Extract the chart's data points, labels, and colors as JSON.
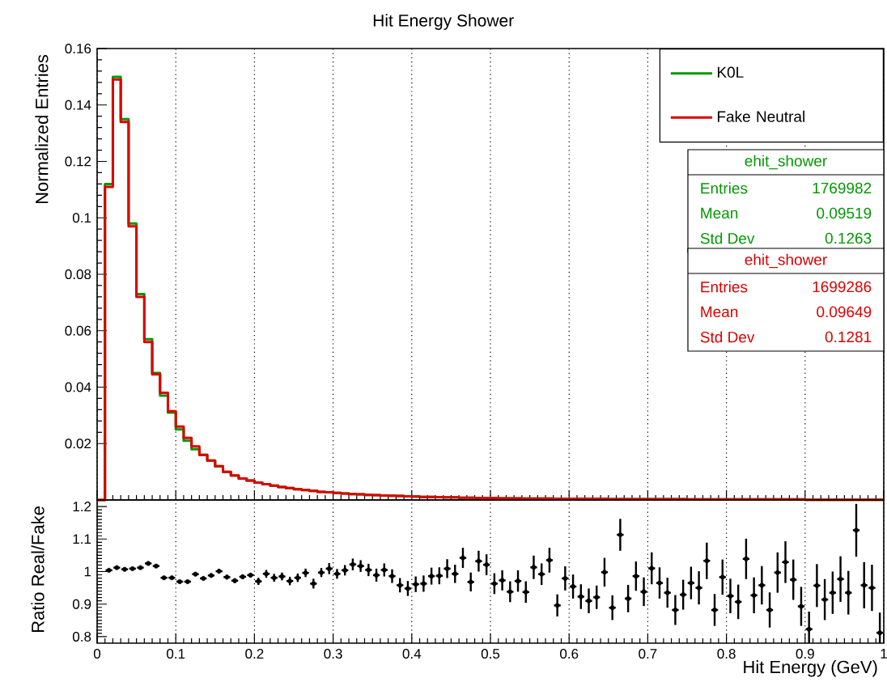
{
  "chart_data": [
    {
      "type": "histogram",
      "title": "Hit Energy Shower",
      "ylabel": "Normalized Entries",
      "bins": [
        0,
        0.01,
        0.02,
        0.03,
        0.04,
        0.05,
        0.06,
        0.07,
        0.08,
        0.09,
        0.1,
        0.11,
        0.12,
        0.13,
        0.14,
        0.15,
        0.16,
        0.17,
        0.18,
        0.19,
        0.2,
        0.21,
        0.22,
        0.23,
        0.24,
        0.25,
        0.26,
        0.27,
        0.28,
        0.29,
        0.3,
        0.31,
        0.32,
        0.33,
        0.34,
        0.35,
        0.36,
        0.37,
        0.38,
        0.39,
        0.4,
        0.41,
        0.42,
        0.43,
        0.44,
        0.45,
        0.46,
        0.47,
        0.48,
        0.49,
        0.5,
        0.51,
        0.52,
        0.53,
        0.54,
        0.55,
        0.56,
        0.57,
        0.58,
        0.59,
        0.6,
        0.61,
        0.62,
        0.63,
        0.64,
        0.65,
        0.66,
        0.67,
        0.68,
        0.69,
        0.7,
        0.71,
        0.72,
        0.73,
        0.74,
        0.75,
        0.76,
        0.77,
        0.78,
        0.79,
        0.8,
        0.81,
        0.82,
        0.83,
        0.84,
        0.85,
        0.86,
        0.87,
        0.88,
        0.89,
        0.9,
        0.91,
        0.92,
        0.93,
        0.94,
        0.95,
        0.96,
        0.97,
        0.98,
        0.99,
        1
      ],
      "series": [
        {
          "name": "K0L",
          "color": "#009900",
          "values": [
            0,
            0.112,
            0.15,
            0.135,
            0.098,
            0.073,
            0.057,
            0.045,
            0.037,
            0.031,
            0.025,
            0.021,
            0.018,
            0.016,
            0.014,
            0.012,
            0.01,
            0.0087,
            0.0076,
            0.0069,
            0.0062,
            0.0056,
            0.0051,
            0.0046,
            0.0042,
            0.0038,
            0.0035,
            0.0032,
            0.0029,
            0.0027,
            0.0025,
            0.0023,
            0.0021,
            0.002,
            0.0018,
            0.0017,
            0.0016,
            0.0015,
            0.0014,
            0.0013,
            0.0012,
            0.0011,
            0.0011,
            0.001,
            0.0009,
            0.0009,
            0.0008,
            0.0008,
            0.0007,
            0.0007,
            0.0007,
            0.0006,
            0.0006,
            0.0006,
            0.0005,
            0.0005,
            0.0005,
            0.0005,
            0.0004,
            0.0004,
            0.0004,
            0.0004,
            0.0004,
            0.0004,
            0.0004,
            0.0003,
            0.0003,
            0.0003,
            0.0003,
            0.0003,
            0.0003,
            0.0003,
            0.0003,
            0.0003,
            0.0003,
            0.0002,
            0.0002,
            0.0002,
            0.0002,
            0.0002,
            0.0002,
            0.0002,
            0.0002,
            0.0002,
            0.0002,
            0.0002,
            0.0002,
            0.0002,
            0.0002,
            0.0002,
            0.0001,
            0.0001,
            0.0001,
            0.0001,
            0.0001,
            0.0001,
            0.0001,
            0.0001,
            0.0001,
            0.0001
          ]
        },
        {
          "name": "Fake Neutral",
          "color": "#dd0000",
          "values": [
            0,
            0.111,
            0.149,
            0.134,
            0.097,
            0.072,
            0.056,
            0.0445,
            0.038,
            0.0315,
            0.026,
            0.022,
            0.019,
            0.016,
            0.014,
            0.012,
            0.01,
            0.0087,
            0.0076,
            0.0069,
            0.0062,
            0.0056,
            0.0051,
            0.0046,
            0.0042,
            0.0038,
            0.0035,
            0.0032,
            0.0029,
            0.0027,
            0.0025,
            0.0023,
            0.0021,
            0.002,
            0.0018,
            0.0017,
            0.0016,
            0.0015,
            0.0014,
            0.0013,
            0.0012,
            0.0011,
            0.0011,
            0.001,
            0.0009,
            0.0009,
            0.0008,
            0.0008,
            0.0007,
            0.0007,
            0.0007,
            0.0006,
            0.0006,
            0.0006,
            0.0005,
            0.0005,
            0.0005,
            0.0005,
            0.0004,
            0.0004,
            0.0004,
            0.0004,
            0.0004,
            0.0004,
            0.0004,
            0.0003,
            0.0003,
            0.0003,
            0.0003,
            0.0003,
            0.0003,
            0.0003,
            0.0003,
            0.0003,
            0.0003,
            0.0002,
            0.0002,
            0.0002,
            0.0002,
            0.0002,
            0.0002,
            0.0002,
            0.0002,
            0.0002,
            0.0002,
            0.0002,
            0.0002,
            0.0002,
            0.0002,
            0.0002,
            0.0001,
            0.0001,
            0.0001,
            0.0001,
            0.0001,
            0.0001,
            0.0001,
            0.0001,
            0.0001,
            0.0001
          ]
        }
      ],
      "xlim": [
        0,
        1
      ],
      "xticks": [
        0,
        0.1,
        0.2,
        0.3,
        0.4,
        0.5,
        0.6,
        0.7,
        0.8,
        0.9,
        1
      ],
      "ylim": [
        0,
        0.16
      ],
      "yticks": [
        0.02,
        0.04,
        0.06,
        0.08,
        0.1,
        0.12,
        0.14,
        0.16
      ],
      "grid": "x",
      "legend": "top right",
      "tick_labels": "y",
      "annotations": [
        "ehit_shower",
        "Entries",
        "1769982",
        "Mean",
        "0.09519",
        "Std Dev",
        "0.1263",
        "ehit_shower",
        "Entries",
        "1699286",
        "Mean",
        "0.09649",
        "Std Dev",
        "0.1281"
      ]
    },
    {
      "type": "scatter",
      "xlabel": "Hit Energy (GeV)",
      "ylabel": "Ratio Real/Fake",
      "color": "#000000",
      "x": [
        0.015,
        0.025,
        0.035,
        0.045,
        0.055,
        0.065,
        0.075,
        0.085,
        0.095,
        0.105,
        0.115,
        0.125,
        0.135,
        0.145,
        0.155,
        0.165,
        0.175,
        0.185,
        0.195,
        0.205,
        0.215,
        0.225,
        0.235,
        0.245,
        0.255,
        0.265,
        0.275,
        0.285,
        0.295,
        0.305,
        0.315,
        0.325,
        0.335,
        0.345,
        0.355,
        0.365,
        0.375,
        0.385,
        0.395,
        0.405,
        0.415,
        0.425,
        0.435,
        0.445,
        0.455,
        0.465,
        0.475,
        0.485,
        0.495,
        0.505,
        0.515,
        0.525,
        0.535,
        0.545,
        0.555,
        0.565,
        0.575,
        0.585,
        0.595,
        0.605,
        0.615,
        0.625,
        0.635,
        0.645,
        0.655,
        0.665,
        0.675,
        0.685,
        0.695,
        0.705,
        0.715,
        0.725,
        0.735,
        0.745,
        0.755,
        0.765,
        0.775,
        0.785,
        0.795,
        0.805,
        0.815,
        0.825,
        0.835,
        0.845,
        0.855,
        0.865,
        0.875,
        0.885,
        0.895,
        0.905,
        0.915,
        0.925,
        0.935,
        0.945,
        0.955,
        0.965,
        0.975,
        0.985,
        0.995
      ],
      "values": [
        1.004,
        1.012,
        1.007,
        1.009,
        1.012,
        1.025,
        1.017,
        0.981,
        0.981,
        0.969,
        0.969,
        0.992,
        0.979,
        0.988,
        1.001,
        0.983,
        0.972,
        0.984,
        0.989,
        0.97,
        0.993,
        0.981,
        0.985,
        0.971,
        0.981,
        0.996,
        0.963,
        0.997,
        1.009,
        0.993,
        1.004,
        1.022,
        1.017,
        1.005,
        0.989,
        1.005,
        0.986,
        0.958,
        0.948,
        0.961,
        0.963,
        0.986,
        0.987,
        1.009,
        0.993,
        1.042,
        0.968,
        1.032,
        1.021,
        0.963,
        0.973,
        0.938,
        0.971,
        0.937,
        1.013,
        0.992,
        1.035,
        0.896,
        0.979,
        0.954,
        0.923,
        0.91,
        0.921,
        0.998,
        0.889,
        1.113,
        0.917,
        0.986,
        0.938,
        1.01,
        0.965,
        0.935,
        0.882,
        0.929,
        0.965,
        0.95,
        1.033,
        0.882,
        0.983,
        0.925,
        0.907,
        1.039,
        0.927,
        0.958,
        0.882,
        0.997,
        1.029,
        0.975,
        0.893,
        0.823,
        0.957,
        0.914,
        0.935,
        0.977,
        0.935,
        1.127,
        0.958,
        0.95,
        0.812
      ],
      "errors": [
        null,
        null,
        null,
        null,
        null,
        null,
        null,
        null,
        null,
        null,
        null,
        0.005,
        0.005,
        0.005,
        0.007,
        0.007,
        0.007,
        0.007,
        0.007,
        0.011,
        0.012,
        0.012,
        0.012,
        0.013,
        0.013,
        0.013,
        0.015,
        0.014,
        0.017,
        0.015,
        0.016,
        0.018,
        0.018,
        0.019,
        0.02,
        0.02,
        0.021,
        0.022,
        0.023,
        0.024,
        0.025,
        0.026,
        0.026,
        0.029,
        0.028,
        0.031,
        0.029,
        0.032,
        0.032,
        0.032,
        0.031,
        0.032,
        0.033,
        0.033,
        0.036,
        0.033,
        0.038,
        0.034,
        0.037,
        0.037,
        0.038,
        0.038,
        0.036,
        0.044,
        0.038,
        0.049,
        0.042,
        0.045,
        0.044,
        0.049,
        0.048,
        0.046,
        0.046,
        0.046,
        0.05,
        0.051,
        0.056,
        0.049,
        0.054,
        0.053,
        0.053,
        0.062,
        0.055,
        0.059,
        0.054,
        0.062,
        0.064,
        0.062,
        0.06,
        [
          0.78,
          0.877
        ],
        0.066,
        0.063,
        0.065,
        0.07,
        0.067,
        0.081,
        0.071,
        0.071,
        [
          0.78,
          0.874
        ]
      ],
      "xerrors": [
        0.005,
        0.005,
        0.005,
        0.005,
        0.005,
        0.005,
        0.005,
        0.005,
        0.005,
        0.005,
        0.005,
        0.005,
        0.005,
        0.005,
        0.005,
        0.005,
        0.005,
        0.005,
        0.005,
        0.005,
        0.005,
        0.005,
        0.005,
        0.005,
        0.005,
        0.005,
        0.005,
        0.005,
        0.005,
        0.005,
        0.005,
        0.005,
        0.005,
        0.005,
        0.005,
        0.005,
        0.005,
        0.005,
        0.005,
        0.005,
        0.005,
        0.005,
        0.005,
        0.005,
        0.005,
        0.005,
        0.005,
        0.005,
        0.005,
        0.005,
        0.005,
        0.005,
        0.005,
        0.005,
        0.005,
        0.005,
        0.005,
        0.005,
        0.005,
        0.005,
        0.005,
        0.005,
        0.005,
        0.005,
        0.005,
        0.005,
        0.005,
        0.005,
        0.005,
        0.005,
        0.005,
        0.005,
        0.005,
        0.005,
        0.005,
        0.005,
        0.005,
        0.005,
        0.005,
        0.005,
        0.005,
        0.005,
        0.005,
        0.005,
        0.005,
        0.005,
        0.005,
        0.005,
        0.005,
        0.005,
        0.005,
        0.005,
        0.005,
        0.005,
        0.005,
        0.005,
        0.005,
        0.005,
        0.005
      ],
      "xlim": [
        0,
        1
      ],
      "xticks": [
        0,
        0.1,
        0.2,
        0.3,
        0.4,
        0.5,
        0.6,
        0.7,
        0.8,
        0.9,
        1
      ],
      "ylim": [
        0.78,
        1.22
      ],
      "yticks": [
        0.8,
        0.9,
        1,
        1.1,
        1.2
      ],
      "grid": "x"
    }
  ]
}
